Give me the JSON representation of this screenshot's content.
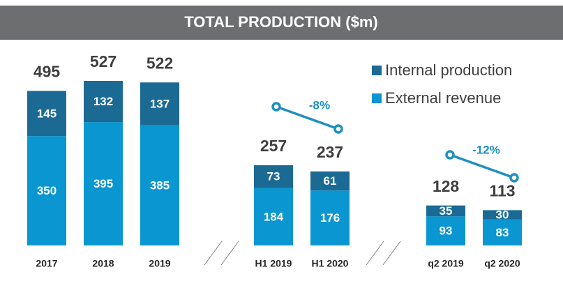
{
  "chart_data": {
    "type": "bar",
    "stacked": true,
    "title": "TOTAL PRODUCTION ($m)",
    "categories": [
      "2017",
      "2018",
      "2019",
      "H1 2019",
      "H1 2020",
      "q2 2019",
      "q2 2020"
    ],
    "series": [
      {
        "name": "External revenue",
        "color": "#0a96d1",
        "values": [
          350,
          395,
          385,
          184,
          176,
          93,
          83
        ]
      },
      {
        "name": "Internal production",
        "color": "#1b6a93",
        "values": [
          145,
          132,
          137,
          73,
          61,
          35,
          30
        ]
      }
    ],
    "totals": [
      495,
      527,
      522,
      257,
      237,
      128,
      113
    ],
    "annotations": [
      "-8%",
      "-12%"
    ]
  }
}
